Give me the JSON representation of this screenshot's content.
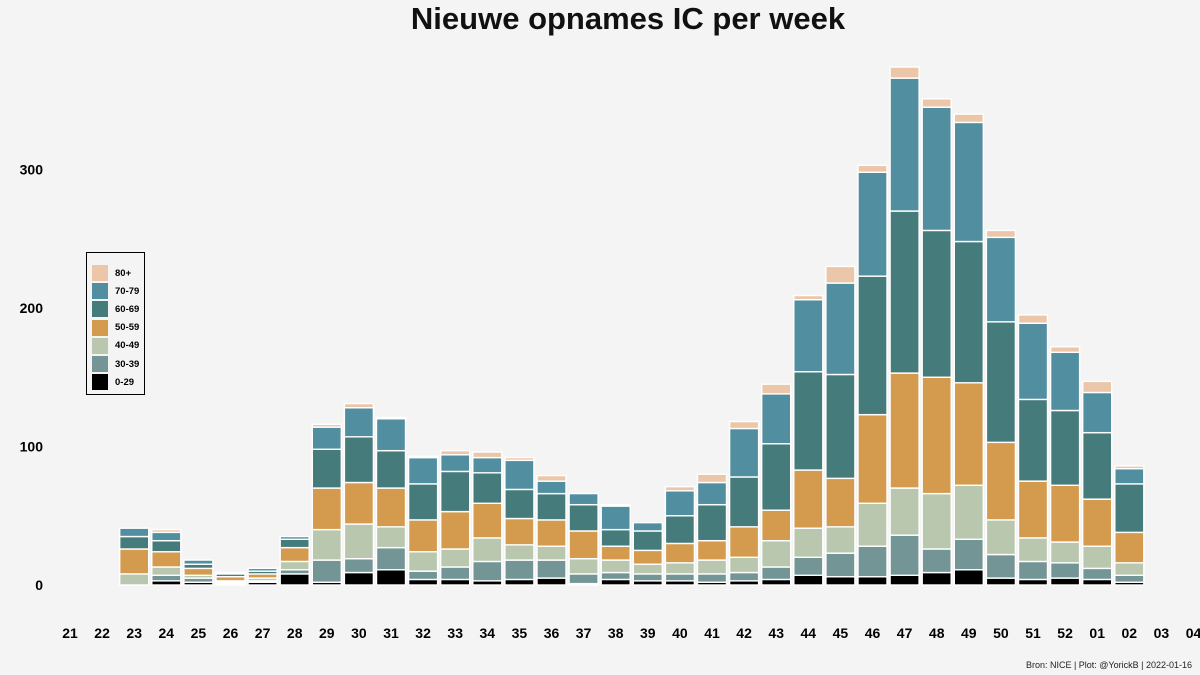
{
  "chart_data": {
    "type": "bar",
    "stacked": true,
    "title": "Nieuwe opnames IC per week",
    "xlabel": "",
    "ylabel": "",
    "ylim": [
      0,
      390
    ],
    "yticks": [
      0,
      100,
      200,
      300
    ],
    "legend_position": "left",
    "categories": [
      "21",
      "22",
      "23",
      "24",
      "25",
      "26",
      "27",
      "28",
      "29",
      "30",
      "31",
      "32",
      "33",
      "34",
      "35",
      "36",
      "37",
      "38",
      "39",
      "40",
      "41",
      "42",
      "43",
      "44",
      "45",
      "46",
      "47",
      "48",
      "49",
      "50",
      "51",
      "52",
      "01",
      "02",
      "03",
      "04"
    ],
    "series": [
      {
        "name": "0-29",
        "color": "#000000",
        "values": [
          0,
          0,
          0,
          3,
          2,
          1,
          2,
          8,
          2,
          9,
          11,
          4,
          4,
          3,
          4,
          5,
          1,
          4,
          3,
          3,
          2,
          3,
          4,
          7,
          6,
          6,
          7,
          9,
          11,
          5,
          4,
          5,
          4,
          2,
          0,
          0
        ]
      },
      {
        "name": "30-39",
        "color": "#749596",
        "values": [
          0,
          0,
          0,
          4,
          3,
          1,
          1,
          3,
          16,
          10,
          16,
          6,
          9,
          14,
          14,
          13,
          7,
          5,
          5,
          5,
          6,
          6,
          9,
          13,
          17,
          22,
          29,
          17,
          22,
          17,
          13,
          11,
          8,
          5,
          0,
          0
        ]
      },
      {
        "name": "40-49",
        "color": "#b8c7ae",
        "values": [
          0,
          0,
          8,
          6,
          2,
          1,
          2,
          6,
          22,
          25,
          15,
          14,
          13,
          17,
          11,
          10,
          11,
          9,
          7,
          8,
          10,
          11,
          19,
          21,
          19,
          31,
          34,
          40,
          39,
          25,
          17,
          15,
          16,
          9,
          0,
          0
        ]
      },
      {
        "name": "50-59",
        "color": "#d49b4e",
        "values": [
          0,
          0,
          18,
          11,
          5,
          3,
          3,
          10,
          30,
          30,
          28,
          23,
          27,
          25,
          19,
          19,
          20,
          10,
          10,
          14,
          14,
          22,
          22,
          42,
          35,
          64,
          83,
          84,
          74,
          56,
          41,
          41,
          34,
          22,
          0,
          0
        ]
      },
      {
        "name": "60-69",
        "color": "#467b7c",
        "values": [
          0,
          0,
          9,
          8,
          3,
          2,
          2,
          6,
          28,
          33,
          27,
          26,
          29,
          22,
          21,
          19,
          19,
          12,
          14,
          20,
          26,
          36,
          48,
          71,
          75,
          100,
          117,
          106,
          102,
          87,
          59,
          54,
          48,
          35,
          0,
          0
        ]
      },
      {
        "name": "70-79",
        "color": "#508ea0",
        "values": [
          0,
          0,
          6,
          6,
          3,
          1,
          2,
          2,
          16,
          21,
          23,
          19,
          12,
          11,
          21,
          9,
          8,
          17,
          6,
          18,
          16,
          35,
          36,
          52,
          66,
          75,
          96,
          89,
          86,
          61,
          55,
          42,
          29,
          11,
          0,
          0
        ]
      },
      {
        "name": "80+",
        "color": "#ecc6a9",
        "values": [
          0,
          0,
          0,
          2,
          0,
          0,
          0,
          0,
          2,
          3,
          1,
          1,
          3,
          4,
          2,
          4,
          0,
          1,
          0,
          3,
          6,
          5,
          7,
          3,
          12,
          5,
          8,
          6,
          6,
          5,
          6,
          4,
          8,
          2,
          0,
          0
        ]
      }
    ]
  },
  "caption": "Bron: NICE | Plot: @YorickB |  2022-01-16"
}
